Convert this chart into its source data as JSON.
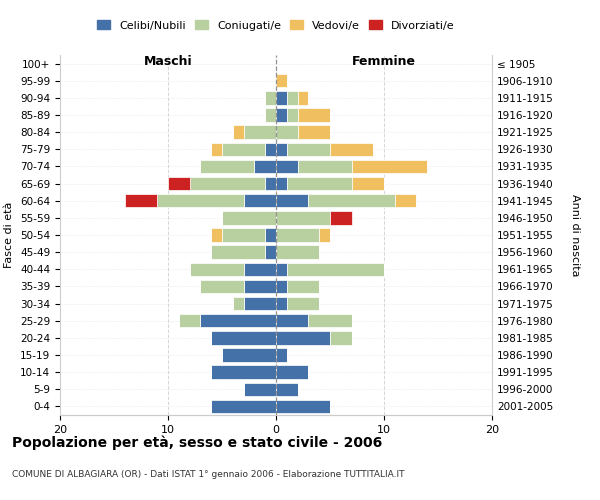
{
  "age_groups": [
    "0-4",
    "5-9",
    "10-14",
    "15-19",
    "20-24",
    "25-29",
    "30-34",
    "35-39",
    "40-44",
    "45-49",
    "50-54",
    "55-59",
    "60-64",
    "65-69",
    "70-74",
    "75-79",
    "80-84",
    "85-89",
    "90-94",
    "95-99",
    "100+"
  ],
  "birth_years": [
    "2001-2005",
    "1996-2000",
    "1991-1995",
    "1986-1990",
    "1981-1985",
    "1976-1980",
    "1971-1975",
    "1966-1970",
    "1961-1965",
    "1956-1960",
    "1951-1955",
    "1946-1950",
    "1941-1945",
    "1936-1940",
    "1931-1935",
    "1926-1930",
    "1921-1925",
    "1916-1920",
    "1911-1915",
    "1906-1910",
    "≤ 1905"
  ],
  "males": {
    "celibi": [
      6,
      3,
      6,
      5,
      6,
      7,
      3,
      3,
      3,
      1,
      1,
      0,
      3,
      1,
      2,
      1,
      0,
      0,
      0,
      0,
      0
    ],
    "coniugati": [
      0,
      0,
      0,
      0,
      0,
      2,
      1,
      4,
      5,
      5,
      4,
      5,
      8,
      7,
      5,
      4,
      3,
      1,
      1,
      0,
      0
    ],
    "vedovi": [
      0,
      0,
      0,
      0,
      0,
      0,
      0,
      0,
      0,
      0,
      1,
      0,
      0,
      0,
      0,
      1,
      1,
      0,
      0,
      0,
      0
    ],
    "divorziati": [
      0,
      0,
      0,
      0,
      0,
      0,
      0,
      0,
      0,
      0,
      0,
      0,
      3,
      2,
      0,
      0,
      0,
      0,
      0,
      0,
      0
    ]
  },
  "females": {
    "nubili": [
      5,
      2,
      3,
      1,
      5,
      3,
      1,
      1,
      1,
      0,
      0,
      0,
      3,
      1,
      2,
      1,
      0,
      1,
      1,
      0,
      0
    ],
    "coniugate": [
      0,
      0,
      0,
      0,
      2,
      4,
      3,
      3,
      9,
      4,
      4,
      5,
      8,
      6,
      5,
      4,
      2,
      1,
      1,
      0,
      0
    ],
    "vedove": [
      0,
      0,
      0,
      0,
      0,
      0,
      0,
      0,
      0,
      0,
      1,
      0,
      2,
      3,
      7,
      4,
      3,
      3,
      1,
      1,
      0
    ],
    "divorziate": [
      0,
      0,
      0,
      0,
      0,
      0,
      0,
      0,
      0,
      0,
      0,
      2,
      0,
      0,
      0,
      0,
      0,
      0,
      0,
      0,
      0
    ]
  },
  "colors": {
    "celibi": "#4472a8",
    "coniugati": "#b8cfa0",
    "vedovi": "#f0c060",
    "divorziati": "#cc2222"
  },
  "xlim": 20,
  "title": "Popolazione per età, sesso e stato civile - 2006",
  "subtitle": "COMUNE DI ALBAGIARA (OR) - Dati ISTAT 1° gennaio 2006 - Elaborazione TUTTITALIA.IT",
  "ylabel_left": "Fasce di età",
  "ylabel_right": "Anni di nascita",
  "xlabel_left": "Maschi",
  "xlabel_right": "Femmine"
}
